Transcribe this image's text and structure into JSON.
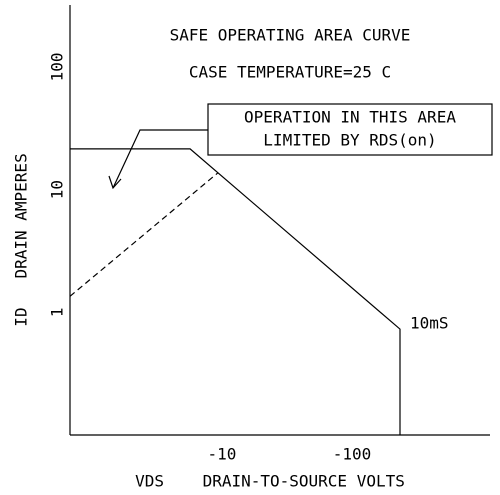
{
  "chart_data": {
    "type": "line",
    "title": "SAFE OPERATING AREA CURVE",
    "subtitle": "CASE TEMPERATURE=25 C",
    "x_label": "VDS    DRAIN-TO-SOURCE VOLTS",
    "y_label": "ID   DRAIN AMPERES",
    "annotations": [
      "OPERATION IN THIS AREA",
      "LIMITED BY RDS(on)",
      "10mS"
    ],
    "xscale": "log",
    "yscale": "log",
    "xlim": [
      -0.68,
      -1150
    ],
    "ylim": [
      0.1,
      320
    ],
    "xticks": [
      -10,
      -100
    ],
    "yticks": [
      1,
      10,
      100
    ],
    "grid": false,
    "series": [
      {
        "color": "#000000",
        "dash": false,
        "x": [
          -0.68,
          -5.7,
          -234,
          -234
        ],
        "values": [
          21.5,
          21.5,
          0.73,
          0.1
        ]
      },
      {
        "color": "#000000",
        "dash": true,
        "x": [
          -0.68,
          -9.3
        ],
        "values": [
          1.35,
          13.7
        ]
      }
    ]
  }
}
